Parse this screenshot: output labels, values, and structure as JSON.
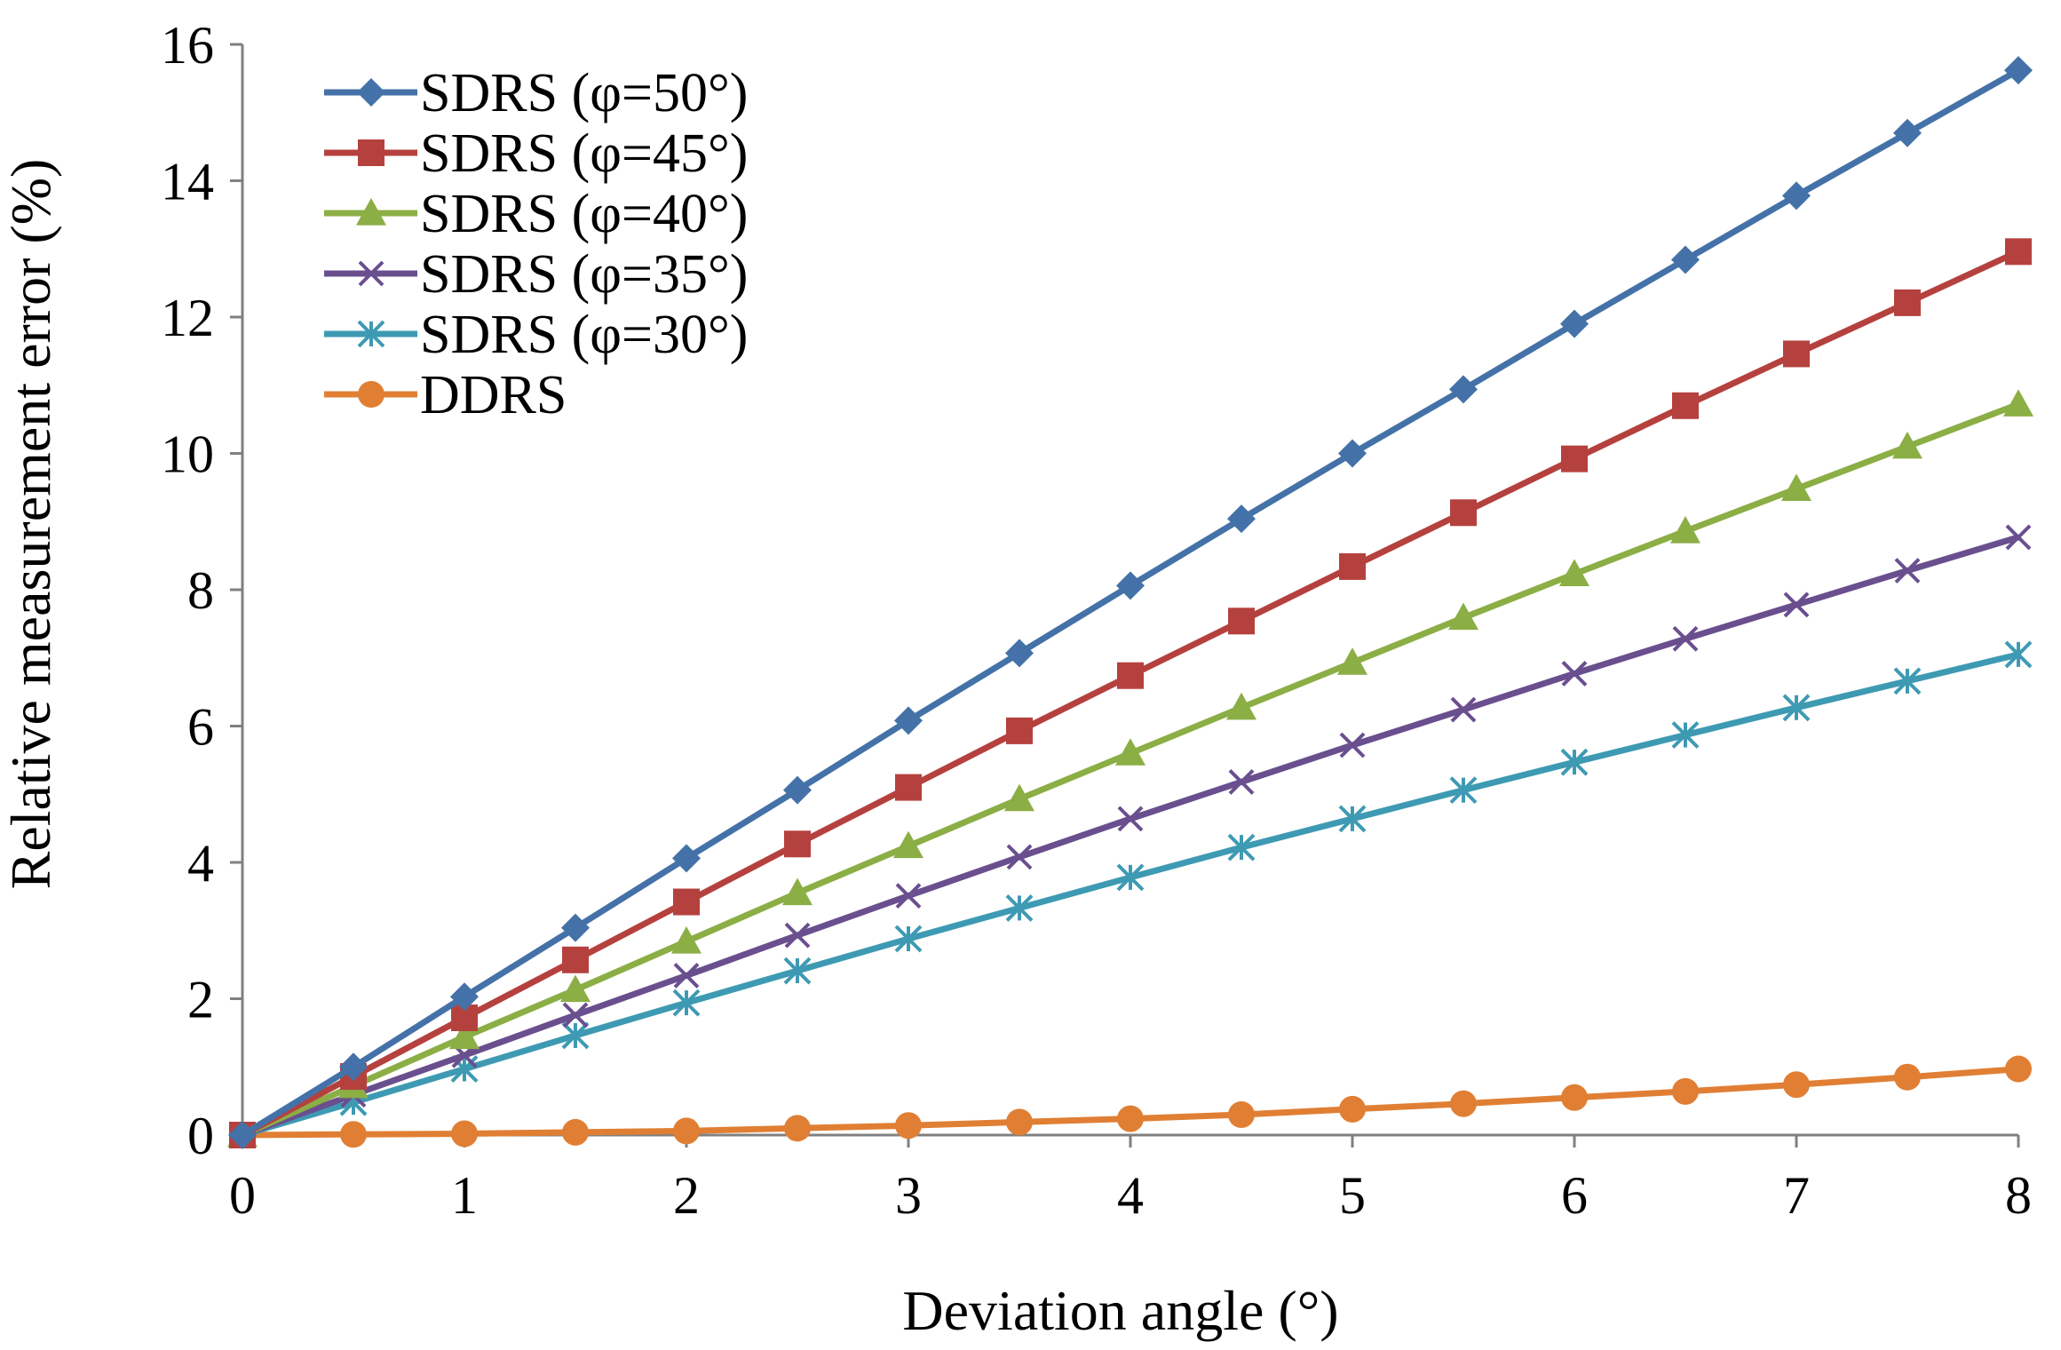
{
  "chart_data": {
    "type": "line",
    "title": "",
    "xlabel": "Deviation angle (°)",
    "ylabel": "Relative measurement error (%)",
    "xlim": [
      0,
      8
    ],
    "ylim": [
      0,
      16
    ],
    "x_ticks": [
      "0",
      "1",
      "2",
      "3",
      "4",
      "5",
      "6",
      "7",
      "8"
    ],
    "y_ticks": [
      "0",
      "2",
      "4",
      "6",
      "8",
      "10",
      "12",
      "14",
      "16"
    ],
    "grid": false,
    "legend_position": "top-left",
    "x": [
      0,
      0.5,
      1,
      1.5,
      2,
      2.5,
      3,
      3.5,
      4,
      4.5,
      5,
      5.5,
      6,
      6.5,
      7,
      7.5,
      8
    ],
    "series": [
      {
        "name": "SDRS (φ=50°)",
        "color": "#4472A8",
        "marker": "diamond",
        "values": [
          0,
          1.0,
          2.03,
          3.04,
          4.06,
          5.06,
          6.08,
          7.07,
          8.06,
          9.04,
          10.0,
          10.94,
          11.9,
          12.84,
          13.78,
          14.7,
          15.62
        ]
      },
      {
        "name": "SDRS (φ=45°)",
        "color": "#B5413E",
        "marker": "square",
        "values": [
          0,
          0.86,
          1.72,
          2.57,
          3.42,
          4.27,
          5.1,
          5.93,
          6.74,
          7.54,
          8.34,
          9.13,
          9.92,
          10.7,
          11.46,
          12.21,
          12.96
        ]
      },
      {
        "name": "SDRS (φ=40°)",
        "color": "#8BAE45",
        "marker": "triangle",
        "values": [
          0,
          0.72,
          1.44,
          2.13,
          2.84,
          3.55,
          4.24,
          4.93,
          5.6,
          6.27,
          6.93,
          7.59,
          8.23,
          8.86,
          9.48,
          10.1,
          10.72
        ]
      },
      {
        "name": "SDRS (φ=35°)",
        "color": "#6A4F8F",
        "marker": "x",
        "values": [
          0,
          0.59,
          1.17,
          1.76,
          2.34,
          2.93,
          3.51,
          4.08,
          4.64,
          5.18,
          5.72,
          6.24,
          6.77,
          7.28,
          7.78,
          8.28,
          8.77
        ]
      },
      {
        "name": "SDRS (φ=30°)",
        "color": "#3E9AB3",
        "marker": "asterisk",
        "values": [
          0,
          0.48,
          0.97,
          1.46,
          1.94,
          2.41,
          2.88,
          3.33,
          3.78,
          4.22,
          4.64,
          5.06,
          5.47,
          5.87,
          6.27,
          6.66,
          7.05
        ]
      },
      {
        "name": "DDRS",
        "color": "#E07F34",
        "marker": "circle",
        "values": [
          0,
          0.01,
          0.02,
          0.04,
          0.06,
          0.1,
          0.14,
          0.19,
          0.24,
          0.3,
          0.38,
          0.46,
          0.55,
          0.64,
          0.74,
          0.85,
          0.97
        ]
      }
    ]
  }
}
